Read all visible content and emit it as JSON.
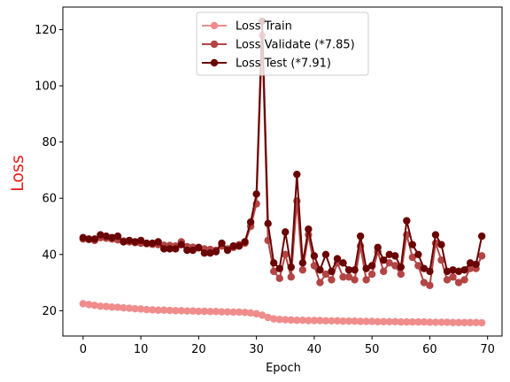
{
  "chart_data": {
    "type": "line",
    "title": "",
    "xlabel": "Epoch",
    "ylabel": "Loss",
    "ylabel_color": "#e8211f",
    "xlim": [
      -3.5,
      72.5
    ],
    "ylim": [
      11,
      128
    ],
    "xticks": [
      0,
      10,
      20,
      30,
      40,
      50,
      60,
      70
    ],
    "yticks": [
      20,
      40,
      60,
      80,
      100,
      120
    ],
    "grid": false,
    "legend_position": "top-center",
    "x": [
      0,
      1,
      2,
      3,
      4,
      5,
      6,
      7,
      8,
      9,
      10,
      11,
      12,
      13,
      14,
      15,
      16,
      17,
      18,
      19,
      20,
      21,
      22,
      23,
      24,
      25,
      26,
      27,
      28,
      29,
      30,
      31,
      32,
      33,
      34,
      35,
      36,
      37,
      38,
      39,
      40,
      41,
      42,
      43,
      44,
      45,
      46,
      47,
      48,
      49,
      50,
      51,
      52,
      53,
      54,
      55,
      56,
      57,
      58,
      59,
      60,
      61,
      62,
      63,
      64,
      65,
      66,
      67,
      68,
      69
    ],
    "series": [
      {
        "name": "Loss Train",
        "color": "#f08c8c",
        "values": [
          22.5,
          22.2,
          21.9,
          21.6,
          21.5,
          21.3,
          21.2,
          21.0,
          20.9,
          20.7,
          20.6,
          20.4,
          20.3,
          20.2,
          20.2,
          20.1,
          20.0,
          20.0,
          19.9,
          19.9,
          19.8,
          19.8,
          19.7,
          19.7,
          19.6,
          19.6,
          19.5,
          19.5,
          19.4,
          19.2,
          18.9,
          18.4,
          17.6,
          17.1,
          16.9,
          16.8,
          16.7,
          16.6,
          16.6,
          16.5,
          16.5,
          16.5,
          16.4,
          16.4,
          16.4,
          16.3,
          16.3,
          16.3,
          16.2,
          16.2,
          16.2,
          16.1,
          16.1,
          16.1,
          16.1,
          16.0,
          16.0,
          16.0,
          16.0,
          16.0,
          15.9,
          15.9,
          15.9,
          15.9,
          15.8,
          15.8,
          15.8,
          15.8,
          15.8,
          15.7
        ]
      },
      {
        "name": "Loss Validate (*7.85)",
        "color": "#b34545",
        "values": [
          45.5,
          45.3,
          45.0,
          46.0,
          45.8,
          45.5,
          45.2,
          44.8,
          44.5,
          44.2,
          44.0,
          43.8,
          43.6,
          43.5,
          43.3,
          43.2,
          43.0,
          44.5,
          42.8,
          42.6,
          42.3,
          42.0,
          41.8,
          41.5,
          43.0,
          42.0,
          42.5,
          43.5,
          44.0,
          50.0,
          58.0,
          118.0,
          45.0,
          34.0,
          31.5,
          40.0,
          32.0,
          59.0,
          34.5,
          47.0,
          36.0,
          30.0,
          33.0,
          31.0,
          37.0,
          32.0,
          32.0,
          31.0,
          43.0,
          31.0,
          33.0,
          41.0,
          34.0,
          37.0,
          36.0,
          33.0,
          47.0,
          39.0,
          36.0,
          30.0,
          29.0,
          44.0,
          38.0,
          31.0,
          32.0,
          30.0,
          31.0,
          35.0,
          35.0,
          39.5
        ]
      },
      {
        "name": "Loss Test (*7.91)",
        "color": "#6a0505",
        "values": [
          46.0,
          45.5,
          45.5,
          47.0,
          46.5,
          46.0,
          46.5,
          44.5,
          45.0,
          44.5,
          45.0,
          44.0,
          44.0,
          44.5,
          42.0,
          42.0,
          42.0,
          43.5,
          41.5,
          41.5,
          42.5,
          40.5,
          40.5,
          41.0,
          44.0,
          41.5,
          43.0,
          43.0,
          44.5,
          51.5,
          61.5,
          123.0,
          51.0,
          37.0,
          35.0,
          48.0,
          35.5,
          68.5,
          37.0,
          49.0,
          39.5,
          34.5,
          40.0,
          34.0,
          38.5,
          37.0,
          34.5,
          34.5,
          46.5,
          35.0,
          36.0,
          42.5,
          38.0,
          40.0,
          39.5,
          35.5,
          52.0,
          43.5,
          40.0,
          35.0,
          34.0,
          47.0,
          43.5,
          34.0,
          34.5,
          34.0,
          34.5,
          37.0,
          36.5,
          46.5
        ]
      }
    ]
  }
}
